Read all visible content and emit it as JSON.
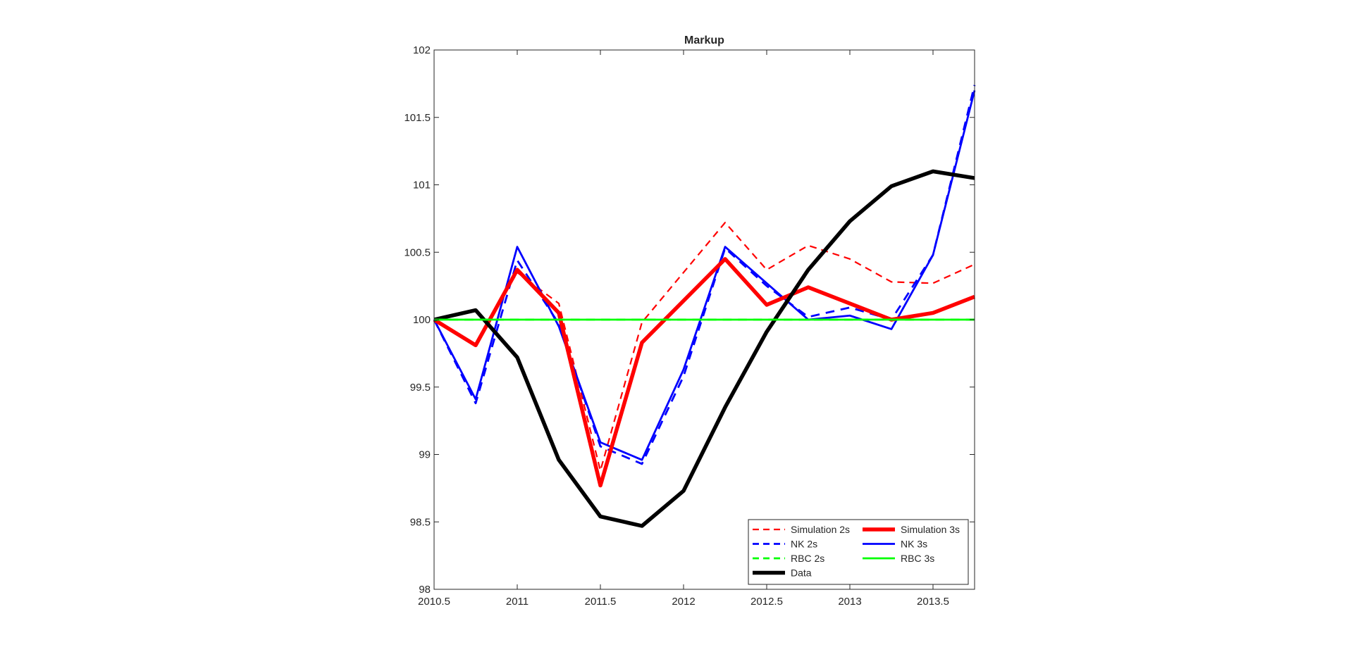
{
  "chart_data": {
    "type": "line",
    "title": "Markup",
    "xlabel": "",
    "ylabel": "",
    "xlim": [
      2010.5,
      2013.75
    ],
    "ylim": [
      98,
      102
    ],
    "xticks": [
      2010.5,
      2011,
      2011.5,
      2012,
      2012.5,
      2013,
      2013.5
    ],
    "xtick_labels": [
      "2010.5",
      "2011",
      "2011.5",
      "2012",
      "2012.5",
      "2013",
      "2013.5"
    ],
    "yticks": [
      98,
      98.5,
      99,
      99.5,
      100,
      100.5,
      101,
      101.5,
      102
    ],
    "ytick_labels": [
      "98",
      "98.5",
      "99",
      "99.5",
      "100",
      "100.5",
      "101",
      "101.5",
      "102"
    ],
    "grid": false,
    "legend_position": "bottom-right",
    "x": [
      2010.5,
      2010.75,
      2011,
      2011.25,
      2011.5,
      2011.75,
      2012,
      2012.25,
      2012.5,
      2012.75,
      2013,
      2013.25,
      2013.5,
      2013.75
    ],
    "series": [
      {
        "name": "Simulation 2s",
        "color": "#ff0000",
        "style": "dashed",
        "width": "thin",
        "values": [
          100.0,
          99.82,
          100.35,
          100.12,
          98.88,
          99.98,
          100.35,
          100.72,
          100.37,
          100.55,
          100.45,
          100.28,
          100.27,
          100.41
        ]
      },
      {
        "name": "Simulation 3s",
        "color": "#ff0000",
        "style": "solid",
        "width": "thick",
        "values": [
          100.0,
          99.81,
          100.37,
          100.05,
          98.77,
          99.83,
          100.14,
          100.45,
          100.11,
          100.24,
          100.12,
          100.0,
          100.05,
          100.17
        ]
      },
      {
        "name": "NK 2s",
        "color": "#0000ff",
        "style": "dashed",
        "width": "medium",
        "values": [
          100.0,
          99.38,
          100.44,
          99.97,
          99.06,
          98.93,
          99.58,
          100.53,
          100.25,
          100.02,
          100.09,
          100.0,
          100.48,
          101.74
        ]
      },
      {
        "name": "NK 3s",
        "color": "#0000ff",
        "style": "solid",
        "width": "medium",
        "values": [
          100.0,
          99.41,
          100.54,
          99.95,
          99.09,
          98.96,
          99.63,
          100.54,
          100.27,
          100.0,
          100.03,
          99.93,
          100.48,
          101.7
        ]
      },
      {
        "name": "RBC 2s",
        "color": "#00ff00",
        "style": "dashed",
        "width": "medium",
        "values": [
          100,
          100,
          100,
          100,
          100,
          100,
          100,
          100,
          100,
          100,
          100,
          100,
          100,
          100
        ]
      },
      {
        "name": "RBC 3s",
        "color": "#00ff00",
        "style": "solid",
        "width": "medium",
        "values": [
          100,
          100,
          100,
          100,
          100,
          100,
          100,
          100,
          100,
          100,
          100,
          100,
          100,
          100
        ]
      },
      {
        "name": "Data",
        "color": "#000000",
        "style": "solid",
        "width": "thick",
        "values": [
          100.0,
          100.07,
          99.72,
          98.96,
          98.54,
          98.47,
          98.73,
          99.35,
          99.91,
          100.37,
          100.73,
          100.99,
          101.1,
          101.05
        ]
      }
    ]
  }
}
